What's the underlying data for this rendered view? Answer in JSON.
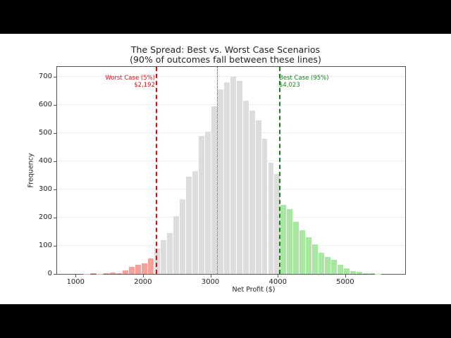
{
  "chart_data": {
    "type": "bar",
    "title": "The Spread: Best vs. Worst Case Scenarios",
    "subtitle": "(90% of outcomes fall between these lines)",
    "xlabel": "Net Profit ($)",
    "ylabel": "Frequency",
    "xlim": [
      725,
      5890
    ],
    "ylim": [
      0,
      735
    ],
    "xticks": [
      1000,
      2000,
      3000,
      4000,
      5000
    ],
    "yticks": [
      0,
      100,
      200,
      300,
      400,
      500,
      600,
      700
    ],
    "grid": "horizontal",
    "bin_start": 1120,
    "bin_width": 94,
    "values": [
      1,
      2,
      1,
      3,
      5,
      2,
      12,
      26,
      32,
      38,
      55,
      90,
      120,
      145,
      205,
      265,
      345,
      365,
      490,
      505,
      595,
      655,
      680,
      700,
      685,
      615,
      580,
      545,
      480,
      395,
      355,
      245,
      230,
      185,
      155,
      130,
      105,
      75,
      60,
      50,
      32,
      20,
      10,
      8,
      3,
      2,
      1
    ],
    "zones": [
      {
        "name": "worst-tail",
        "color": "#f8a09a",
        "upto": 2192
      },
      {
        "name": "middle",
        "color": "#dcdcdc"
      },
      {
        "name": "best-tail",
        "color": "#a6e8a0",
        "from": 4023
      }
    ],
    "annotations": [
      {
        "label": "Worst Case (5%)",
        "value": "$2,192",
        "x": 2192,
        "color": "#d0121b",
        "style": "dashed"
      },
      {
        "label": "Best Case (95%)",
        "value": "$4,023",
        "x": 4023,
        "color": "#1a7d1a",
        "style": "dashed"
      },
      {
        "label": "mean",
        "x": 3100,
        "color": "#555555",
        "style": "dotted"
      }
    ]
  },
  "labels": {
    "title": "The Spread: Best vs. Worst Case Scenarios",
    "subtitle": "(90% of outcomes fall between these lines)",
    "xlabel": "Net Profit ($)",
    "ylabel": "Frequency",
    "worst_label": "Worst Case (5%)",
    "worst_value": "$2,192",
    "best_label": "Best Case (95%)",
    "best_value": "$4,023"
  }
}
